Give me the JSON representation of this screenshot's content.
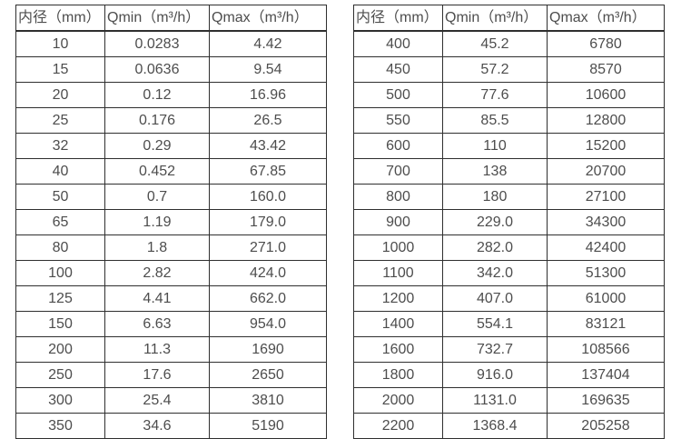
{
  "colors": {
    "border": "#2f2f2f",
    "text": "#4d4d4d",
    "background": "#ffffff"
  },
  "chart_data": [
    {
      "type": "table",
      "title": "",
      "columns": [
        "内径（mm）",
        "Qmin（m³/h）",
        "Qmax（m³/h）"
      ],
      "rows": [
        [
          "10",
          "0.0283",
          "4.42"
        ],
        [
          "15",
          "0.0636",
          "9.54"
        ],
        [
          "20",
          "0.12",
          "16.96"
        ],
        [
          "25",
          "0.176",
          "26.5"
        ],
        [
          "32",
          "0.29",
          "43.42"
        ],
        [
          "40",
          "0.452",
          "67.85"
        ],
        [
          "50",
          "0.7",
          "160.0"
        ],
        [
          "65",
          "1.19",
          "179.0"
        ],
        [
          "80",
          "1.8",
          "271.0"
        ],
        [
          "100",
          "2.82",
          "424.0"
        ],
        [
          "125",
          "4.41",
          "662.0"
        ],
        [
          "150",
          "6.63",
          "954.0"
        ],
        [
          "200",
          "11.3",
          "1690"
        ],
        [
          "250",
          "17.6",
          "2650"
        ],
        [
          "300",
          "25.4",
          "3810"
        ],
        [
          "350",
          "34.6",
          "5190"
        ]
      ]
    },
    {
      "type": "table",
      "title": "",
      "columns": [
        "内径（mm）",
        "Qmin（m³/h）",
        "Qmax（m³/h）"
      ],
      "rows": [
        [
          "400",
          "45.2",
          "6780"
        ],
        [
          "450",
          "57.2",
          "8570"
        ],
        [
          "500",
          "77.6",
          "10600"
        ],
        [
          "550",
          "85.5",
          "12800"
        ],
        [
          "600",
          "110",
          "15200"
        ],
        [
          "700",
          "138",
          "20700"
        ],
        [
          "800",
          "180",
          "27100"
        ],
        [
          "900",
          "229.0",
          "34300"
        ],
        [
          "1000",
          "282.0",
          "42400"
        ],
        [
          "1100",
          "342.0",
          "51300"
        ],
        [
          "1200",
          "407.0",
          "61000"
        ],
        [
          "1400",
          "554.1",
          "83121"
        ],
        [
          "1600",
          "732.7",
          "108566"
        ],
        [
          "1800",
          "916.0",
          "137404"
        ],
        [
          "2000",
          "1131.0",
          "169635"
        ],
        [
          "2200",
          "1368.4",
          "205258"
        ]
      ]
    }
  ]
}
